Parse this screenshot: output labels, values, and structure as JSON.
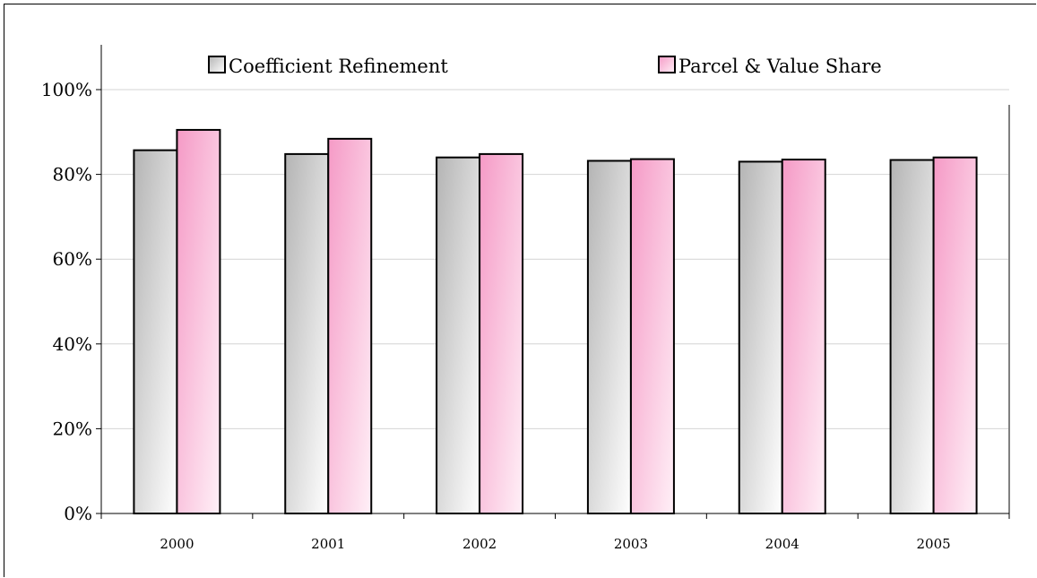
{
  "chart_data": {
    "type": "bar",
    "title": "",
    "xlabel": "",
    "ylabel": "",
    "categories": [
      "2000",
      "2001",
      "2002",
      "2003",
      "2004",
      "2005"
    ],
    "series": [
      {
        "name": "Coefficient Refinement",
        "values": [
          85.7,
          84.8,
          84.0,
          83.2,
          83.0,
          83.4
        ],
        "color": "#c8c8c8"
      },
      {
        "name": "Parcel & Value Share",
        "values": [
          90.5,
          88.4,
          84.8,
          83.6,
          83.5,
          84.0
        ],
        "color": "#f7a8cf"
      }
    ],
    "ylim": [
      0,
      100
    ],
    "yticks": [
      0,
      20,
      40,
      60,
      80,
      100
    ],
    "ytick_labels": [
      "0%",
      "20%",
      "40%",
      "60%",
      "80%",
      "100%"
    ],
    "grid": true,
    "legend_position": "top"
  }
}
